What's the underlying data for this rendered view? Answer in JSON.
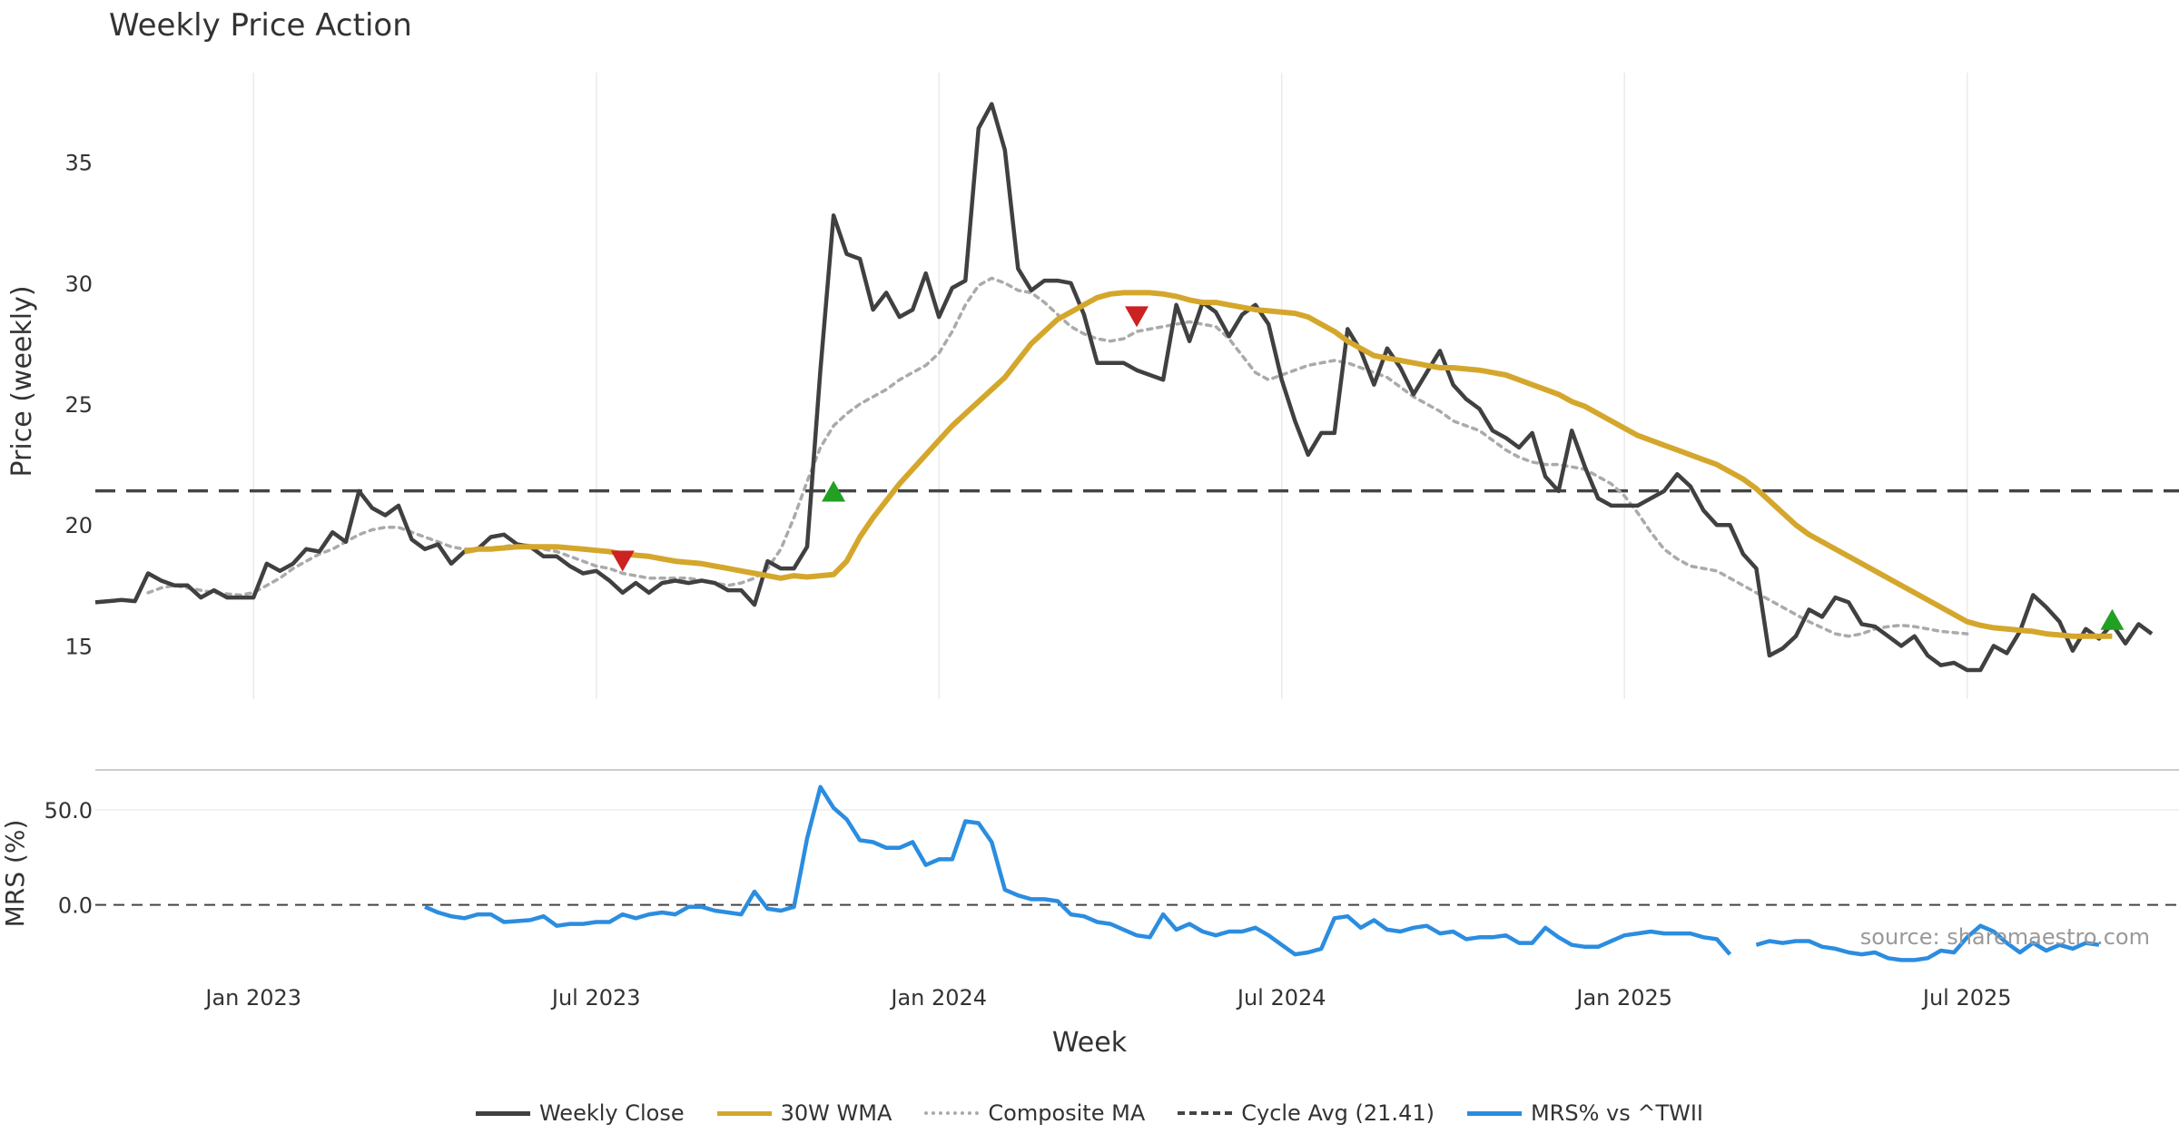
{
  "chart_data": [
    {
      "panel": "price",
      "type": "line",
      "title": "Weekly Price Action",
      "ylabel": "Price (weekly)",
      "ylim": [
        12.8,
        38.7
      ],
      "yticks": [
        15,
        20,
        25,
        30,
        35
      ],
      "xticks": [
        "Jan 2023",
        "Jul 2023",
        "Jan 2024",
        "Jul 2024",
        "Jan 2025",
        "Jul 2025"
      ],
      "series": [
        {
          "name": "Weekly Close",
          "color": "#404040",
          "values": [
            16.8,
            16.85,
            16.9,
            16.85,
            18.0,
            17.7,
            17.5,
            17.5,
            17.0,
            17.3,
            17.0,
            17.0,
            17.0,
            18.4,
            18.1,
            18.4,
            19.0,
            18.9,
            19.7,
            19.3,
            21.4,
            20.7,
            20.4,
            20.8,
            19.4,
            19.0,
            19.2,
            18.4,
            18.9,
            19.0,
            19.5,
            19.6,
            19.2,
            19.1,
            18.7,
            18.7,
            18.3,
            18.0,
            18.1,
            17.7,
            17.2,
            17.6,
            17.2,
            17.6,
            17.7,
            17.6,
            17.7,
            17.6,
            17.3,
            17.3,
            16.7,
            18.5,
            18.2,
            18.2,
            19.1,
            26.4,
            32.8,
            31.2,
            31.0,
            28.9,
            29.6,
            28.6,
            28.9,
            30.4,
            28.6,
            29.8,
            30.1,
            36.4,
            37.4,
            35.5,
            30.6,
            29.7,
            30.1,
            30.1,
            30.0,
            28.7,
            26.7,
            26.7,
            26.7,
            26.4,
            26.2,
            26.0,
            29.1,
            27.6,
            29.2,
            28.8,
            27.8,
            28.7,
            29.1,
            28.3,
            26.0,
            24.3,
            22.9,
            23.8,
            23.8,
            28.1,
            27.2,
            25.8,
            27.3,
            26.5,
            25.4,
            26.3,
            27.2,
            25.8,
            25.2,
            24.8,
            23.9,
            23.6,
            23.2,
            23.8,
            22.0,
            21.4,
            23.9,
            22.4,
            21.1,
            20.8,
            20.8,
            20.8,
            21.1,
            21.4,
            22.1,
            21.6,
            20.6,
            20.0,
            20.0,
            18.8,
            18.2,
            14.6,
            14.9,
            15.4,
            16.5,
            16.2,
            17.0,
            16.8,
            15.9,
            15.8,
            15.4,
            15.0,
            15.4,
            14.6,
            14.2,
            14.3,
            14.0,
            14.0,
            15.0,
            14.7,
            15.6,
            17.1,
            16.6,
            16.0,
            14.8,
            15.7,
            15.3,
            15.9,
            15.1,
            15.9,
            15.5
          ]
        },
        {
          "name": "30W WMA",
          "color": "#d4a72c",
          "start_index": 28,
          "values": [
            18.9,
            19.0,
            19.0,
            19.05,
            19.1,
            19.1,
            19.1,
            19.1,
            19.05,
            19.0,
            18.95,
            18.9,
            18.8,
            18.75,
            18.7,
            18.6,
            18.5,
            18.45,
            18.4,
            18.3,
            18.2,
            18.1,
            18.0,
            17.9,
            17.8,
            17.9,
            17.85,
            17.9,
            17.95,
            18.5,
            19.5,
            20.3,
            21.0,
            21.7,
            22.3,
            22.9,
            23.5,
            24.1,
            24.6,
            25.1,
            25.6,
            26.1,
            26.8,
            27.5,
            28.0,
            28.5,
            28.8,
            29.1,
            29.4,
            29.55,
            29.6,
            29.6,
            29.6,
            29.55,
            29.45,
            29.3,
            29.2,
            29.2,
            29.1,
            29.0,
            28.9,
            28.85,
            28.8,
            28.75,
            28.6,
            28.3,
            28.0,
            27.6,
            27.3,
            27.0,
            26.9,
            26.8,
            26.7,
            26.6,
            26.5,
            26.5,
            26.45,
            26.4,
            26.3,
            26.2,
            26.0,
            25.8,
            25.6,
            25.4,
            25.1,
            24.9,
            24.6,
            24.3,
            24.0,
            23.7,
            23.5,
            23.3,
            23.1,
            22.9,
            22.7,
            22.5,
            22.2,
            21.9,
            21.5,
            21.0,
            20.5,
            20.0,
            19.6,
            19.3,
            19.0,
            18.7,
            18.4,
            18.1,
            17.8,
            17.5,
            17.2,
            16.9,
            16.6,
            16.3,
            16.0,
            15.85,
            15.75,
            15.7,
            15.65,
            15.6,
            15.5,
            15.45,
            15.4,
            15.4,
            15.4,
            15.4
          ]
        },
        {
          "name": "Composite MA",
          "color": "#aaaaaa",
          "start_index": 4,
          "values": [
            17.2,
            17.4,
            17.5,
            17.4,
            17.3,
            17.2,
            17.15,
            17.1,
            17.2,
            17.5,
            17.8,
            18.2,
            18.5,
            18.8,
            19.0,
            19.3,
            19.6,
            19.8,
            19.9,
            19.9,
            19.7,
            19.5,
            19.3,
            19.1,
            19.0,
            19.0,
            19.05,
            19.1,
            19.2,
            19.15,
            19.0,
            18.9,
            18.7,
            18.5,
            18.3,
            18.2,
            18.0,
            17.9,
            17.8,
            17.8,
            17.8,
            17.8,
            17.7,
            17.6,
            17.5,
            17.6,
            17.8,
            18.2,
            19.0,
            20.3,
            21.8,
            23.2,
            24.1,
            24.6,
            25.0,
            25.3,
            25.6,
            26.0,
            26.3,
            26.6,
            27.1,
            28.0,
            29.1,
            29.9,
            30.2,
            30.0,
            29.7,
            29.6,
            29.2,
            28.7,
            28.2,
            27.9,
            27.7,
            27.6,
            27.7,
            28.0,
            28.1,
            28.2,
            28.3,
            28.4,
            28.3,
            28.2,
            27.7,
            27.0,
            26.3,
            26.0,
            26.2,
            26.4,
            26.6,
            26.7,
            26.8,
            26.7,
            26.5,
            26.3,
            26.1,
            25.7,
            25.3,
            25.0,
            24.7,
            24.3,
            24.1,
            23.9,
            23.5,
            23.1,
            22.8,
            22.6,
            22.5,
            22.5,
            22.4,
            22.3,
            22.0,
            21.7,
            21.2,
            20.5,
            19.7,
            19.0,
            18.6,
            18.3,
            18.2,
            18.1,
            17.8,
            17.5,
            17.2,
            16.9,
            16.6,
            16.3,
            16.0,
            15.75,
            15.5,
            15.4,
            15.5,
            15.7,
            15.8,
            15.85,
            15.8,
            15.7,
            15.6,
            15.55,
            15.5
          ]
        }
      ],
      "reference_line": {
        "name": "Cycle Avg (21.41)",
        "value": 21.41,
        "color": "#444444"
      },
      "markers": [
        {
          "type": "sell",
          "index": 40,
          "value": 18.6,
          "color": "#cc2222"
        },
        {
          "type": "buy",
          "index": 56,
          "value": 21.3,
          "color": "#22a022"
        },
        {
          "type": "sell",
          "index": 79,
          "value": 28.7,
          "color": "#cc2222"
        },
        {
          "type": "buy",
          "index": 153,
          "value": 16.0,
          "color": "#22a022"
        }
      ]
    },
    {
      "panel": "mrs",
      "type": "line",
      "ylabel": "MRS (%)",
      "ylim": [
        -35,
        70
      ],
      "yticks": [
        "0.0",
        "50.0"
      ],
      "zero_line": 0,
      "series": [
        {
          "name": "MRS% vs ^TWII",
          "color": "#2b8de0",
          "start_index": 25,
          "gap_after_index": 124,
          "values": [
            -1,
            -4,
            -6,
            -7,
            -5,
            -5,
            -9,
            -8.5,
            -8,
            -6,
            -11,
            -10,
            -10,
            -9,
            -9,
            -5,
            -7,
            -5,
            -4,
            -5,
            -1,
            -1,
            -3,
            -4,
            -5,
            7,
            -2,
            -3,
            -1,
            35,
            62,
            51,
            45,
            34,
            33,
            30,
            30,
            33,
            21,
            24,
            24,
            44,
            43,
            33,
            8,
            5,
            3,
            3,
            2,
            -5,
            -6,
            -9,
            -10,
            -13,
            -16,
            -17,
            -5,
            -13,
            -10,
            -14,
            -16,
            -14,
            -14,
            -12,
            -16,
            -21,
            -26,
            -25,
            -23,
            -7,
            -6,
            -12,
            -8,
            -13,
            -14,
            -12,
            -11,
            -15,
            -14,
            -18,
            -17,
            -17,
            -16,
            -20,
            -20,
            -12,
            -17,
            -21,
            -22,
            -22,
            -19,
            -16,
            -15,
            -14,
            -15,
            -15,
            -15,
            -17,
            -18,
            -26,
            -23,
            -21,
            -19,
            -20,
            -19,
            -19,
            -22,
            -23,
            -25,
            -26,
            -25,
            -28,
            -29,
            -29,
            -28,
            -24,
            -25,
            -17,
            -11,
            -14,
            -20,
            -25,
            -20,
            -24,
            -21,
            -23,
            -20,
            -21
          ]
        }
      ]
    }
  ],
  "x_axis": {
    "label": "Week"
  },
  "source": "source: sharemaestro.com",
  "legend": [
    {
      "label": "Weekly Close",
      "style": "solid",
      "color": "#404040"
    },
    {
      "label": "30W WMA",
      "style": "solid",
      "color": "#d4a72c"
    },
    {
      "label": "Composite MA",
      "style": "dotted",
      "color": "#aaaaaa"
    },
    {
      "label": "Cycle Avg (21.41)",
      "style": "dashed",
      "color": "#444444"
    },
    {
      "label": "MRS% vs ^TWII",
      "style": "solid",
      "color": "#2b8de0"
    }
  ]
}
